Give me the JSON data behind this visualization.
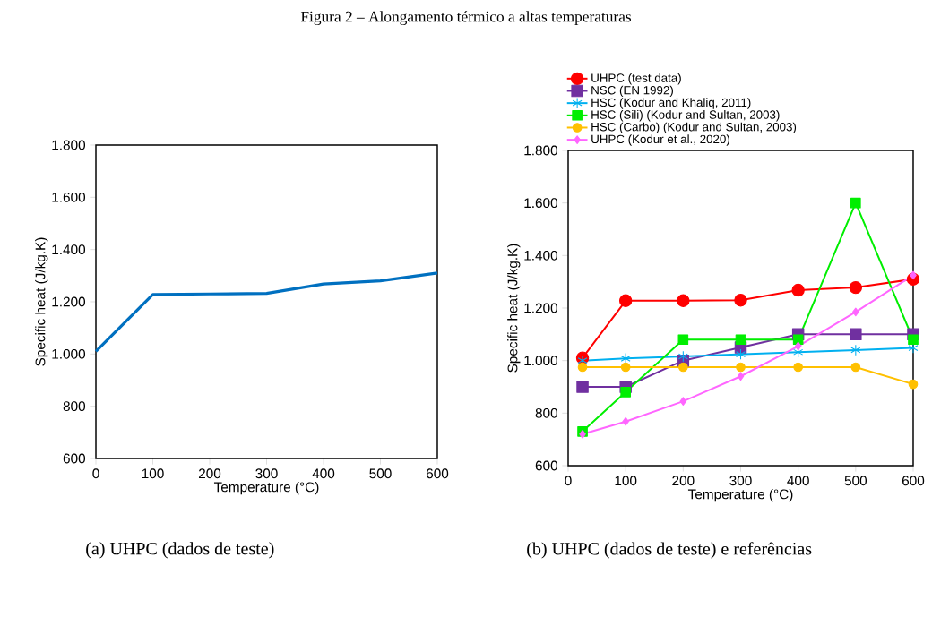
{
  "chart_data": [
    {
      "type": "line",
      "xlabel": "Temperature (°C)",
      "ylabel": "Specific heat (J/kg.K)",
      "annotations": [
        "Figura 2 – Alongamento térmico a altas temperaturas",
        "(a)  UHPC (dados de teste)"
      ],
      "x": [
        0,
        100,
        200,
        300,
        400,
        500,
        600
      ],
      "series": [
        {
          "color": "#0070c0",
          "values": [
            1010,
            1228,
            1230,
            1232,
            1268,
            1280,
            1310
          ]
        }
      ],
      "xlim": [
        0,
        600
      ],
      "xticks": [
        0,
        100,
        200,
        300,
        400,
        500,
        600
      ],
      "ylim": [
        600,
        1800
      ],
      "yticks": [
        600,
        800,
        {
          "value": 1000,
          "label": "1.000"
        },
        {
          "value": 1200,
          "label": "1.200"
        },
        {
          "value": 1400,
          "label": "1.400"
        },
        {
          "value": 1600,
          "label": "1.600"
        },
        {
          "value": 1800,
          "label": "1.800"
        }
      ],
      "grid": false,
      "legend": false,
      "marker": "none",
      "line_style": "solid"
    },
    {
      "type": "line",
      "xlabel": "Temperature (°C)",
      "ylabel": "Specific heat (J/kg.K)",
      "annotations": [
        "(b) UHPC (dados de teste) e referências"
      ],
      "x": [
        25,
        100,
        200,
        300,
        400,
        500,
        600
      ],
      "series": [
        {
          "name": "UHPC (test data)",
          "color": "#ff0000",
          "marker": "circle",
          "values": [
            1010,
            1228,
            1228,
            1230,
            1268,
            1278,
            1310
          ]
        },
        {
          "name": "NSC (EN 1992)",
          "color": "#7030a0",
          "marker": "square",
          "values": [
            900,
            900,
            1000,
            1050,
            1100,
            1100,
            1100
          ]
        },
        {
          "name": "HSC (Kodur and Khaliq, 2011)",
          "color": "#00b0f0",
          "marker": "cross",
          "values": [
            1000,
            1008,
            1016,
            1024,
            1032,
            1040,
            1048
          ]
        },
        {
          "name": "HSC (Sili) (Kodur and Sultan, 2003)",
          "color": "#00ee00",
          "marker": "square",
          "values": [
            730,
            880,
            1080,
            1080,
            1080,
            1600,
            1080
          ]
        },
        {
          "name": "HSC (Carbo) (Kodur and Sultan, 2003)",
          "color": "#ffc000",
          "marker": "circle",
          "values": [
            975,
            975,
            975,
            975,
            975,
            975,
            910
          ]
        },
        {
          "name": "UHPC (Kodur et al., 2020)",
          "color": "#ff66ff",
          "marker": "diamond",
          "values": [
            720,
            768,
            845,
            940,
            1055,
            1185,
            1325
          ]
        }
      ],
      "xlim": [
        0,
        600
      ],
      "xticks": [
        0,
        100,
        200,
        300,
        400,
        500,
        600
      ],
      "ylim": [
        600,
        1800
      ],
      "yticks": [
        600,
        800,
        {
          "value": 1000,
          "label": "1.000"
        },
        {
          "value": 1200,
          "label": "1.200"
        },
        {
          "value": 1400,
          "label": "1.400"
        },
        {
          "value": 1600,
          "label": "1.600"
        },
        {
          "value": 1800,
          "label": "1.800"
        }
      ],
      "grid": false,
      "legend": "top",
      "line_style": "solid"
    }
  ]
}
